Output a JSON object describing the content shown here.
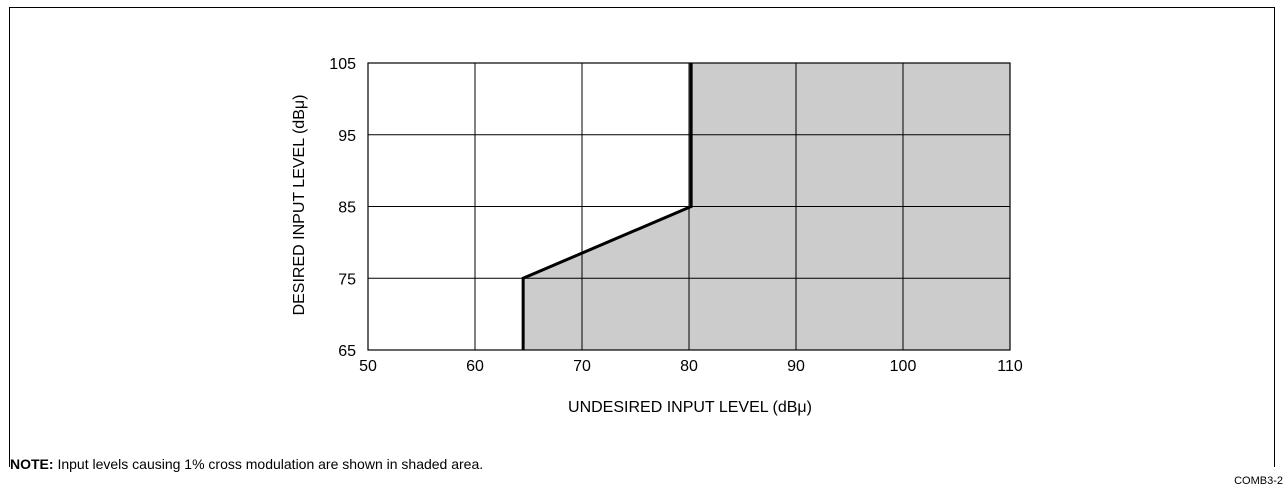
{
  "chart_data": {
    "type": "area",
    "xlabel": "UNDESIRED INPUT LEVEL (dBμ)",
    "ylabel": "DESIRED INPUT LEVEL (dBμ)",
    "xlim": [
      50,
      110
    ],
    "ylim": [
      65,
      105
    ],
    "xticks": [
      50,
      60,
      70,
      80,
      90,
      100,
      110
    ],
    "yticks": [
      65,
      75,
      85,
      95,
      105
    ],
    "grid": true,
    "boundary": {
      "x": [
        64.5,
        64.5,
        80.2,
        80.2
      ],
      "y": [
        65,
        75,
        85,
        105
      ]
    },
    "shaded_region": "right of boundary",
    "fill_color": "#cccccc",
    "line_color": "#000000"
  },
  "note": {
    "label": "NOTE:",
    "text": "Input levels causing 1% cross modulation are shown in shaded area."
  },
  "figure_code": "COMB3-2"
}
